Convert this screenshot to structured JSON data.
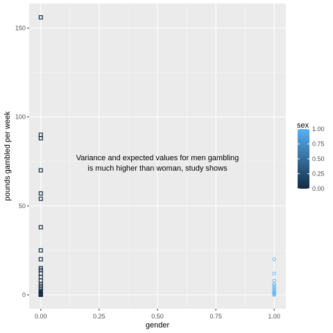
{
  "chart_data": {
    "type": "scatter",
    "xlabel": "gender",
    "ylabel": "pounds gambled per week",
    "annotation": [
      "Variance and expected values for men gambling",
      "is much higher than woman, study shows"
    ],
    "xlim": [
      -0.05,
      1.05
    ],
    "ylim": [
      -7.8,
      163.8
    ],
    "xticks": [
      0.0,
      0.25,
      0.5,
      0.75,
      1.0
    ],
    "xtick_labels": [
      "0.00",
      "0.25",
      "0.50",
      "0.75",
      "1.00"
    ],
    "yticks": [
      0,
      50,
      100,
      150
    ],
    "ytick_labels": [
      "0",
      "50",
      "100",
      "150"
    ],
    "grid": true,
    "background": "#ebebeb",
    "legend": {
      "title": "sex",
      "position": "right",
      "colorbar": true,
      "ticks": [
        "1.00",
        "0.75",
        "0.50",
        "0.25",
        "0.00"
      ],
      "low_color": "#132b43",
      "high_color": "#56b1f7"
    },
    "series": [
      {
        "sex": 0,
        "shape": "square",
        "color": "#132b43",
        "x": [
          0,
          0,
          0,
          0,
          0,
          0,
          0,
          0,
          0,
          0,
          0,
          0,
          0,
          0,
          0,
          0,
          0,
          0,
          0,
          0,
          0,
          0,
          0,
          0,
          0,
          0,
          0
        ],
        "y": [
          156,
          90,
          88,
          70,
          57,
          54,
          38,
          25,
          20,
          15,
          14,
          12,
          10,
          8,
          6,
          5,
          4,
          3,
          2,
          1.5,
          1,
          0.8,
          0.5,
          0.3,
          0.2,
          0.1,
          0
        ]
      },
      {
        "sex": 1,
        "shape": "circle",
        "color": "#56b1f7",
        "x": [
          1,
          1,
          1,
          1,
          1,
          1,
          1,
          1,
          1,
          1,
          1,
          1
        ],
        "y": [
          20,
          12,
          8,
          6,
          5,
          4,
          3,
          2,
          1.5,
          1,
          0.5,
          0
        ]
      }
    ]
  }
}
